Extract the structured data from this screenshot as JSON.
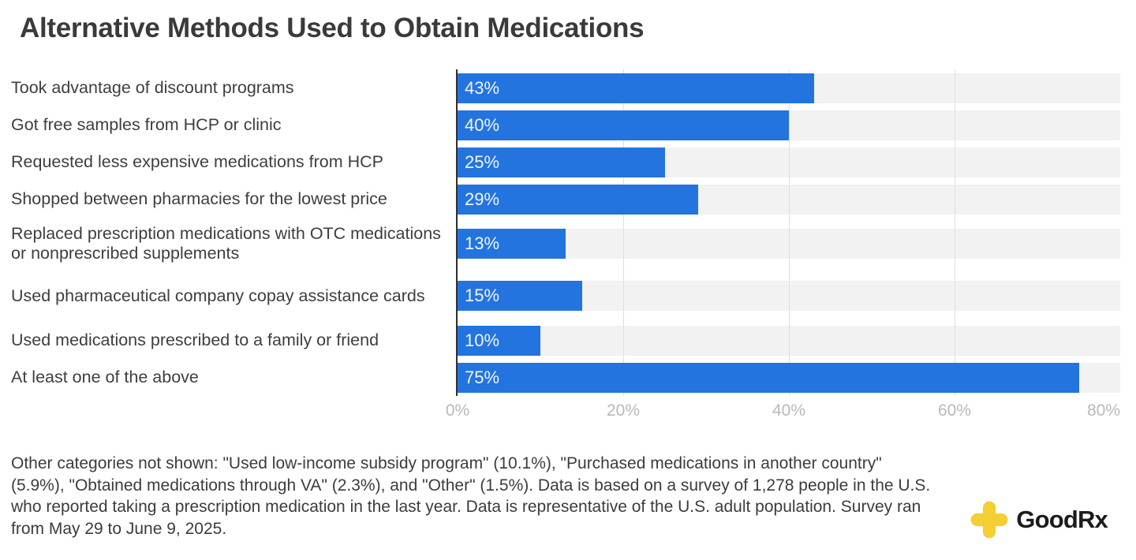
{
  "header": {
    "title": "Alternative Methods Used to Obtain Medications"
  },
  "chart_data": {
    "type": "bar",
    "orientation": "horizontal",
    "title": "Alternative Methods Used to Obtain Medications",
    "categories": [
      "Took advantage of discount programs",
      "Got free samples from HCP or clinic",
      "Requested less expensive medications from HCP",
      "Shopped between pharmacies for the lowest price",
      "Replaced prescription medications with OTC medications or nonprescribed supplements",
      "Used pharmaceutical company copay assistance cards",
      "Used medications prescribed to a family or friend",
      "At least one of the above"
    ],
    "values": [
      43,
      40,
      25,
      29,
      13,
      15,
      10,
      75
    ],
    "value_labels": [
      "43%",
      "40%",
      "25%",
      "29%",
      "13%",
      "15%",
      "10%",
      "75%"
    ],
    "axis_max": 80,
    "x_tick_values": [
      0,
      20,
      40,
      60,
      80
    ],
    "x_tick_labels": [
      "0%",
      "20%",
      "40%",
      "60%",
      "80%"
    ],
    "grid": true,
    "legend": "none",
    "two_line_rows": [
      4,
      5
    ],
    "bar_color": "#2374DE",
    "track_color": "#F2F2F3",
    "grid_color": "#DFDFE1",
    "axis_line_color": "#2F2F31",
    "value_label_color": "#F2F5FA",
    "tick_label_color": "#B9B9BB"
  },
  "footnote": {
    "text": "Other categories not shown: \"Used low-income subsidy program\" (10.1%), \"Purchased medications in another country\" (5.9%), \"Obtained medications through VA\" (2.3%), and \"Other\" (1.5%). Data is based on a survey of 1,278 people in the U.S. who reported taking a prescription medication in the last year. Data is representative of the U.S. adult population. Survey ran from May 29 to June 9, 2025."
  },
  "branding": {
    "logo_text": "GoodRx",
    "logo_color": "#F3CF33",
    "wordmark_color": "#1C1C1E"
  }
}
